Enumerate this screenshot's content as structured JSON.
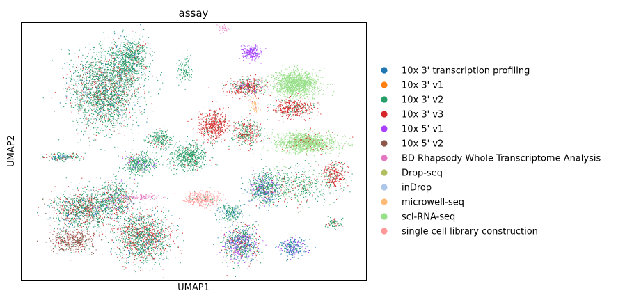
{
  "chart_data": {
    "type": "scatter",
    "title": "assay",
    "xlabel": "UMAP1",
    "ylabel": "UMAP2",
    "xticks": [],
    "yticks": [],
    "grid": false,
    "legend_placement": "right",
    "series": [
      {
        "name": "10x 3' transcription profiling",
        "color": "#1f77b4"
      },
      {
        "name": "10x 3' v1",
        "color": "#ff7f0e"
      },
      {
        "name": "10x 3' v2",
        "color": "#279e68"
      },
      {
        "name": "10x 3' v3",
        "color": "#d62728"
      },
      {
        "name": "10x 5' v1",
        "color": "#aa40fc"
      },
      {
        "name": "10x 5' v2",
        "color": "#8c564b"
      },
      {
        "name": "BD Rhapsody Whole Transcriptome Analysis",
        "color": "#e377c2"
      },
      {
        "name": "Drop-seq",
        "color": "#b5bd61"
      },
      {
        "name": "inDrop",
        "color": "#aec7e8"
      },
      {
        "name": "microwell-seq",
        "color": "#ffbb78"
      },
      {
        "name": "sci-RNA-seq",
        "color": "#98df8a"
      },
      {
        "name": "single cell library construction",
        "color": "#ff9896"
      }
    ]
  }
}
